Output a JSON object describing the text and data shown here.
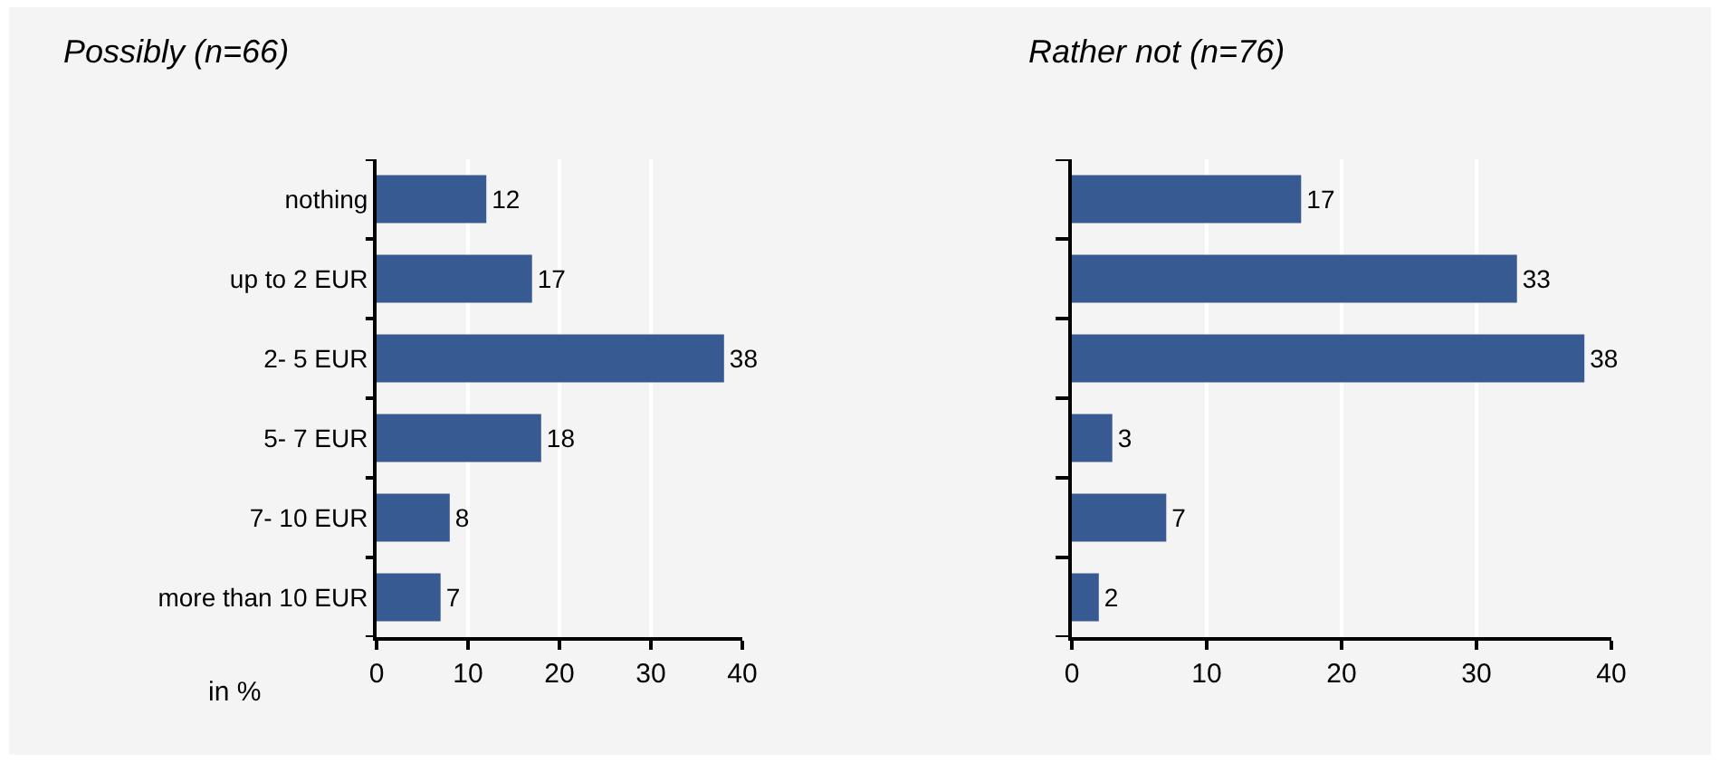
{
  "chart_data": [
    {
      "type": "bar",
      "title": "Possibly (n=66)",
      "orientation": "horizontal",
      "categories": [
        "nothing",
        "up to 2 EUR",
        "2- 5 EUR",
        "5- 7 EUR",
        "7- 10 EUR",
        "more than 10 EUR"
      ],
      "values": [
        12,
        17,
        38,
        18,
        8,
        7
      ],
      "color": "#365a91",
      "xlabel": "in %",
      "xlim": [
        0,
        40
      ],
      "xticks": [
        0,
        10,
        20,
        30,
        40
      ],
      "grid": "x",
      "data_labels": true
    },
    {
      "type": "bar",
      "title": "Rather not (n=76)",
      "orientation": "horizontal",
      "categories": [
        null,
        null,
        null,
        null,
        null,
        null
      ],
      "values": [
        17,
        33,
        38,
        3,
        7,
        2
      ],
      "color": "#365a91",
      "xlim": [
        0,
        40
      ],
      "xticks": [
        0,
        10,
        20,
        30,
        40
      ],
      "grid": "x",
      "data_labels": true,
      "tick_labels": "x"
    }
  ]
}
